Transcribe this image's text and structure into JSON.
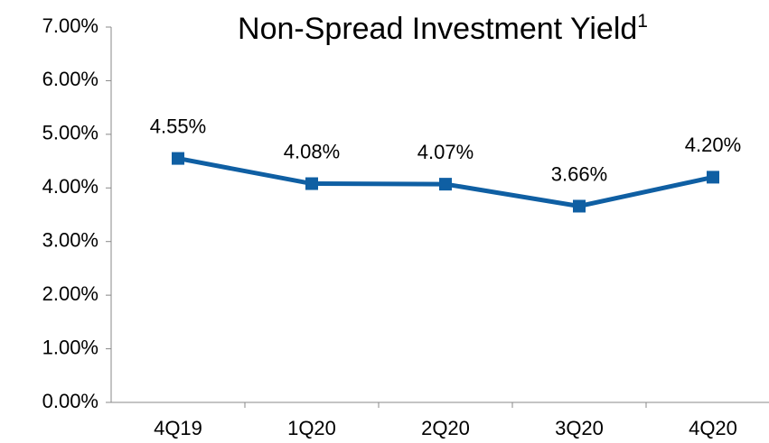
{
  "chart_data": {
    "type": "line",
    "title": "Non-Spread Investment Yield",
    "title_superscript": "1",
    "categories": [
      "4Q19",
      "1Q20",
      "2Q20",
      "3Q20",
      "4Q20"
    ],
    "values": [
      4.55,
      4.08,
      4.07,
      3.66,
      4.2
    ],
    "value_labels": [
      "4.55%",
      "4.08%",
      "4.07%",
      "3.66%",
      "4.20%"
    ],
    "color": "#0f5fa3",
    "ylim": [
      0,
      7
    ],
    "yticks": [
      {
        "value": 0,
        "label": "0.00%"
      },
      {
        "value": 1,
        "label": "1.00%"
      },
      {
        "value": 2,
        "label": "2.00%"
      },
      {
        "value": 3,
        "label": "3.00%"
      },
      {
        "value": 4,
        "label": "4.00%"
      },
      {
        "value": 5,
        "label": "5.00%"
      },
      {
        "value": 6,
        "label": "6.00%"
      },
      {
        "value": 7,
        "label": "7.00%"
      }
    ]
  }
}
